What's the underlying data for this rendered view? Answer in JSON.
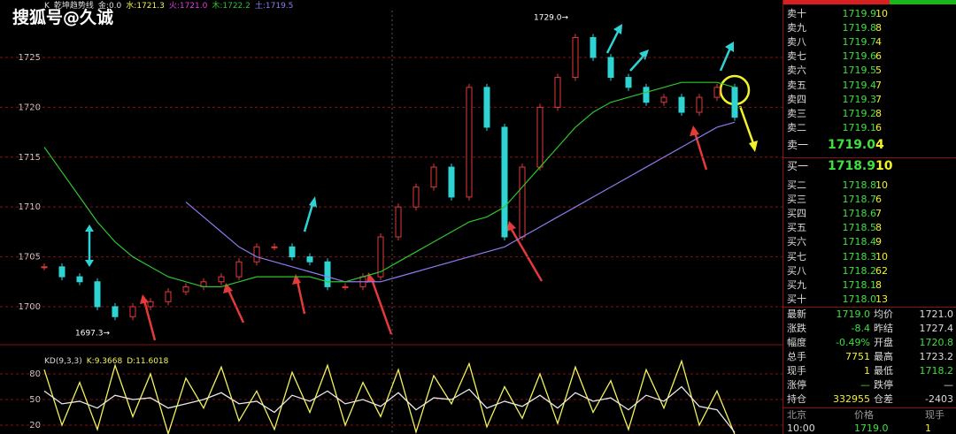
{
  "watermark": "搜狐号@久诚",
  "chart_data": [
    {
      "type": "line",
      "legend": [
        "K",
        "乾坤趋势线",
        "金:0.0",
        "水:1721.3",
        "火:1721.0",
        "木:1722.2",
        "土:1719.5"
      ],
      "annotations": [
        "1729.0→",
        "1697.3→"
      ],
      "ylim": [
        1697,
        1730
      ],
      "yticks": [
        1700,
        1705,
        1710,
        1715,
        1720,
        1725
      ],
      "grid": true,
      "series": [
        {
          "color": "#00e5e5",
          "values": [
            1704,
            1703,
            1702.5,
            1700,
            1699,
            1700,
            1700.5,
            1701.5,
            1702,
            1702.5,
            1703,
            1704.5,
            1706,
            1706,
            1705,
            1704.5,
            1702,
            1702,
            1703,
            1707,
            1710,
            1712,
            1714,
            1711,
            1722,
            1718,
            1707,
            1714,
            1720,
            1723,
            1727,
            1725,
            1723,
            1722,
            1720.5,
            1721,
            1719.5,
            1721,
            1722,
            1719
          ]
        },
        {
          "color": "#8c7cf0",
          "values": [
            null,
            null,
            null,
            null,
            null,
            null,
            null,
            null,
            1710.5,
            1709,
            1707.5,
            1706,
            1705,
            1704.5,
            1704,
            1703.5,
            1703,
            1702.5,
            1702.5,
            1702.5,
            1703,
            1703.5,
            1704,
            1704.5,
            1705,
            1705.5,
            1706,
            1707,
            1708,
            1709,
            1710,
            1711,
            1712,
            1713,
            1714,
            1715,
            1716,
            1717,
            1718,
            1718.5
          ]
        },
        {
          "color": "#2ec52e",
          "values": [
            1716,
            1713.5,
            1711,
            1708.5,
            1706.5,
            1705,
            1704,
            1703,
            1702.5,
            1702,
            1702,
            1702.5,
            1703,
            1703,
            1703,
            1703,
            1702.5,
            1702.5,
            1703,
            1703.5,
            1704.5,
            1705.5,
            1706.5,
            1707.5,
            1708.5,
            1709,
            1710,
            1712,
            1714,
            1716,
            1718,
            1719.5,
            1720.5,
            1721,
            1721.5,
            1722,
            1722.5,
            1722.5,
            1722.5,
            1722
          ]
        }
      ]
    },
    {
      "type": "line",
      "legend": [
        "KD(9,3,3)",
        "K:9.3668",
        "D:11.6018"
      ],
      "ylim": [
        10,
        98
      ],
      "yticks": [
        20,
        50,
        80
      ],
      "grid": true,
      "series": [
        {
          "color": "#f2f25a",
          "values": [
            85,
            20,
            70,
            15,
            90,
            30,
            80,
            10,
            75,
            40,
            88,
            25,
            60,
            15,
            82,
            35,
            90,
            20,
            70,
            30,
            85,
            12,
            78,
            45,
            92,
            18,
            65,
            28,
            80,
            22,
            88,
            35,
            72,
            15,
            85,
            40,
            95,
            20,
            60,
            9.3668
          ]
        },
        {
          "color": "#e8e8e8",
          "values": [
            60,
            45,
            48,
            40,
            55,
            50,
            52,
            40,
            45,
            50,
            58,
            45,
            48,
            35,
            55,
            48,
            60,
            45,
            50,
            42,
            58,
            38,
            52,
            50,
            62,
            40,
            48,
            42,
            55,
            40,
            58,
            48,
            52,
            38,
            55,
            48,
            65,
            42,
            38,
            11.6018
          ]
        }
      ]
    }
  ],
  "book": {
    "sell": [
      [
        "卖十",
        "1719.9",
        "10"
      ],
      [
        "卖九",
        "1719.8",
        "8"
      ],
      [
        "卖八",
        "1719.7",
        "4"
      ],
      [
        "卖七",
        "1719.6",
        "6"
      ],
      [
        "卖六",
        "1719.5",
        "5"
      ],
      [
        "卖五",
        "1719.4",
        "7"
      ],
      [
        "卖四",
        "1719.3",
        "7"
      ],
      [
        "卖三",
        "1719.2",
        "8"
      ],
      [
        "卖二",
        "1719.1",
        "6"
      ],
      [
        "卖一",
        "1719.0",
        "4"
      ]
    ],
    "buy": [
      [
        "买一",
        "1718.9",
        "10"
      ],
      [
        "买二",
        "1718.8",
        "10"
      ],
      [
        "买三",
        "1718.7",
        "6"
      ],
      [
        "买四",
        "1718.6",
        "7"
      ],
      [
        "买五",
        "1718.5",
        "8"
      ],
      [
        "买六",
        "1718.4",
        "9"
      ],
      [
        "买七",
        "1718.3",
        "10"
      ],
      [
        "买八",
        "1718.2",
        "62"
      ],
      [
        "买九",
        "1718.1",
        "8"
      ],
      [
        "买十",
        "1718.0",
        "13"
      ]
    ]
  },
  "stats": [
    [
      "最新",
      "1719.0",
      "均价",
      "1721.0"
    ],
    [
      "涨跌",
      "-8.4",
      "昨结",
      "1727.4"
    ],
    [
      "幅度",
      "-0.49%",
      "开盘",
      "1720.8"
    ],
    [
      "总手",
      "7751",
      "最高",
      "1723.2"
    ],
    [
      "现手",
      "1",
      "最低",
      "1718.2"
    ],
    [
      "涨停",
      "—",
      "跌停",
      "—"
    ],
    [
      "持仓",
      "332955",
      "仓差",
      "-2403"
    ]
  ],
  "ticks": {
    "header": [
      "北京",
      "价格",
      "现手"
    ],
    "rows": [
      [
        "10:00",
        "1719.0",
        "1"
      ]
    ]
  }
}
